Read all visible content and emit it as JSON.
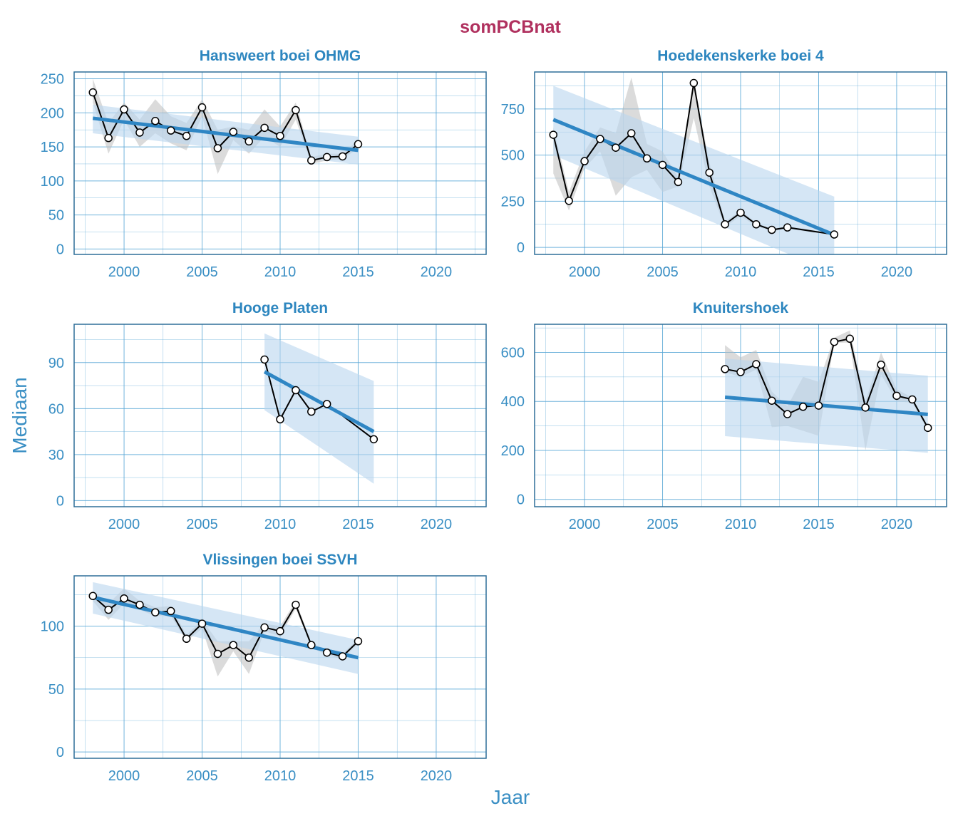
{
  "figure": {
    "title": "somPCBnat",
    "xlabel": "Jaar",
    "ylabel": "Mediaan",
    "colors": {
      "title": "#b0305e",
      "axis_text": "#3a8fc4",
      "panel_title": "#2d86bf",
      "frame": "#2e6f99",
      "grid": "#5aa7d6",
      "trend": "#2f86c4",
      "ribbon": "#b9d6ee",
      "band": "#bdbdbd",
      "line": "#000000"
    }
  },
  "chart_data": [
    {
      "type": "line",
      "title": "Hansweert boei OHMG",
      "xlim": [
        1996.8,
        2023.2
      ],
      "ylim": [
        -8,
        260
      ],
      "xticks": [
        2000,
        2005,
        2010,
        2015,
        2020
      ],
      "yticks": [
        0,
        50,
        100,
        150,
        200,
        250
      ],
      "x": [
        1998,
        1999,
        2000,
        2001,
        2002,
        2003,
        2004,
        2005,
        2006,
        2007,
        2008,
        2009,
        2010,
        2011,
        2012,
        2013,
        2014,
        2015
      ],
      "y": [
        230,
        163,
        205,
        171,
        188,
        174,
        166,
        208,
        148,
        172,
        158,
        178,
        166,
        204,
        130,
        135,
        136,
        154
      ],
      "band_low": [
        215,
        140,
        190,
        150,
        170,
        155,
        145,
        195,
        110,
        160,
        140,
        165,
        150,
        190,
        125,
        130,
        132,
        148
      ],
      "band_high": [
        250,
        185,
        215,
        190,
        220,
        195,
        185,
        220,
        175,
        180,
        175,
        205,
        180,
        215,
        135,
        140,
        140,
        160
      ],
      "trend": {
        "x": [
          1998,
          2015
        ],
        "y": [
          192,
          145
        ]
      },
      "trend_ci_low": [
        170,
        124
      ],
      "trend_ci_high": [
        212,
        165
      ]
    },
    {
      "type": "line",
      "title": "Hoedekenskerke boei 4",
      "xlim": [
        1996.8,
        2023.2
      ],
      "ylim": [
        -38,
        950
      ],
      "xticks": [
        2000,
        2005,
        2010,
        2015,
        2020
      ],
      "yticks": [
        0,
        250,
        500,
        750
      ],
      "x": [
        1998,
        1999,
        2000,
        2001,
        2002,
        2003,
        2004,
        2005,
        2006,
        2007,
        2008,
        2009,
        2010,
        2011,
        2012,
        2013,
        2016
      ],
      "y": [
        610,
        252,
        467,
        587,
        540,
        618,
        482,
        447,
        354,
        890,
        405,
        125,
        188,
        125,
        95,
        108,
        70
      ],
      "band_low": [
        400,
        200,
        430,
        520,
        280,
        380,
        420,
        300,
        330,
        700,
        330,
        110,
        170,
        115,
        88,
        100,
        65
      ],
      "band_high": [
        650,
        300,
        520,
        650,
        620,
        920,
        560,
        520,
        380,
        900,
        460,
        140,
        200,
        135,
        100,
        115,
        75
      ],
      "trend": {
        "x": [
          1998,
          2016
        ],
        "y": [
          692,
          68
        ]
      },
      "trend_ci_low": [
        500,
        -140
      ],
      "trend_ci_high": [
        875,
        275
      ]
    },
    {
      "type": "line",
      "title": "Hooge Platen",
      "xlim": [
        1996.8,
        2023.2
      ],
      "ylim": [
        -4,
        115
      ],
      "xticks": [
        2000,
        2005,
        2010,
        2015,
        2020
      ],
      "yticks": [
        0,
        30,
        60,
        90
      ],
      "x": [
        2009,
        2010,
        2011,
        2012,
        2013,
        2016
      ],
      "y": [
        92,
        53,
        72,
        58,
        63,
        40
      ],
      "band_low": null,
      "band_high": null,
      "trend": {
        "x": [
          2009,
          2016
        ],
        "y": [
          84,
          45
        ]
      },
      "trend_ci_low": [
        59,
        11
      ],
      "trend_ci_high": [
        109,
        78
      ]
    },
    {
      "type": "line",
      "title": "Knuitershoek",
      "xlim": [
        1996.8,
        2023.2
      ],
      "ylim": [
        -30,
        715
      ],
      "xticks": [
        2000,
        2005,
        2010,
        2015,
        2020
      ],
      "yticks": [
        0,
        200,
        400,
        600
      ],
      "x": [
        2009,
        2010,
        2011,
        2012,
        2013,
        2014,
        2015,
        2016,
        2017,
        2018,
        2019,
        2020,
        2021,
        2022
      ],
      "y": [
        532,
        520,
        552,
        403,
        348,
        378,
        383,
        643,
        656,
        375,
        550,
        423,
        408,
        292
      ],
      "band_low": [
        520,
        500,
        530,
        295,
        300,
        280,
        260,
        640,
        640,
        200,
        510,
        400,
        395,
        280
      ],
      "band_high": [
        630,
        580,
        610,
        440,
        380,
        500,
        480,
        660,
        690,
        400,
        600,
        450,
        415,
        300
      ],
      "trend": {
        "x": [
          2009,
          2022
        ],
        "y": [
          417,
          347
        ]
      },
      "trend_ci_low": [
        258,
        190
      ],
      "trend_ci_high": [
        575,
        505
      ]
    },
    {
      "type": "line",
      "title": "Vlissingen boei SSVH",
      "xlim": [
        1996.8,
        2023.2
      ],
      "ylim": [
        -5,
        140
      ],
      "xticks": [
        2000,
        2005,
        2010,
        2015,
        2020
      ],
      "yticks": [
        0,
        50,
        100
      ],
      "x": [
        1998,
        1999,
        2000,
        2001,
        2002,
        2003,
        2004,
        2005,
        2006,
        2007,
        2008,
        2009,
        2010,
        2011,
        2012,
        2013,
        2014,
        2015
      ],
      "y": [
        124,
        113,
        122,
        117,
        111,
        112,
        90,
        102,
        78,
        85,
        75,
        99,
        96,
        117,
        85,
        79,
        76,
        88
      ],
      "band_low": [
        120,
        105,
        118,
        113,
        108,
        108,
        88,
        98,
        60,
        80,
        62,
        96,
        92,
        114,
        83,
        77,
        74,
        86
      ],
      "band_high": [
        128,
        118,
        130,
        120,
        115,
        116,
        93,
        105,
        88,
        88,
        88,
        102,
        100,
        120,
        87,
        81,
        78,
        90
      ],
      "trend": {
        "x": [
          1998,
          2015
        ],
        "y": [
          123,
          75
        ]
      },
      "trend_ci_low": [
        110,
        62
      ],
      "trend_ci_high": [
        135,
        89
      ]
    }
  ]
}
